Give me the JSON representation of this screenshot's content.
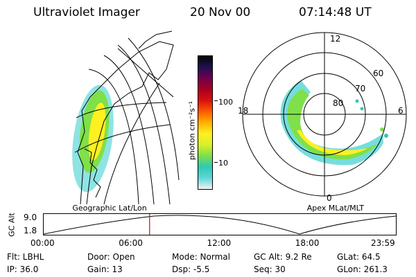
{
  "header": {
    "instrument": "Ultraviolet Imager",
    "date": "20 Nov 00",
    "time": "07:14:48 UT"
  },
  "geo_panel": {
    "caption": "Geographic Lat/Lon"
  },
  "colorbar": {
    "unit_label": "photon cm⁻²s⁻¹",
    "tick_100": "100",
    "tick_10": "10",
    "colors": [
      "#f2f2f2",
      "#5ed7d7",
      "#2fc9b5",
      "#7fe04a",
      "#d8f02a",
      "#fff020",
      "#ffb000",
      "#ff5a00",
      "#d81010",
      "#a80020",
      "#70004f",
      "#201050",
      "#050505"
    ]
  },
  "polar_panel": {
    "caption": "Apex MLat/MLT",
    "mlt_labels": {
      "top": "12",
      "left": "18",
      "right": "6",
      "bottom": "0"
    },
    "lat_labels": {
      "l60": "60",
      "l70": "70",
      "l80": "80"
    }
  },
  "timeline": {
    "axis_label": "GC Alt",
    "y_max": "9.0",
    "y_min": "1.8",
    "ticks": [
      "00:00",
      "06:00",
      "12:00",
      "18:00",
      "23:59"
    ],
    "current_hour": 7.25,
    "marker_color": "#e00000"
  },
  "info": {
    "flt": "Flt: LBHL",
    "door": "Door: Open",
    "mode": "Mode: Normal",
    "gc_alt": "GC Alt: 9.2 Re",
    "glat": "GLat:  64.5",
    "ip": "IP: 36.0",
    "gain": "Gain: 13",
    "dsp": "Dsp:    -5.5",
    "seq": "Seq: 30",
    "glon": "GLon: 261.3"
  }
}
